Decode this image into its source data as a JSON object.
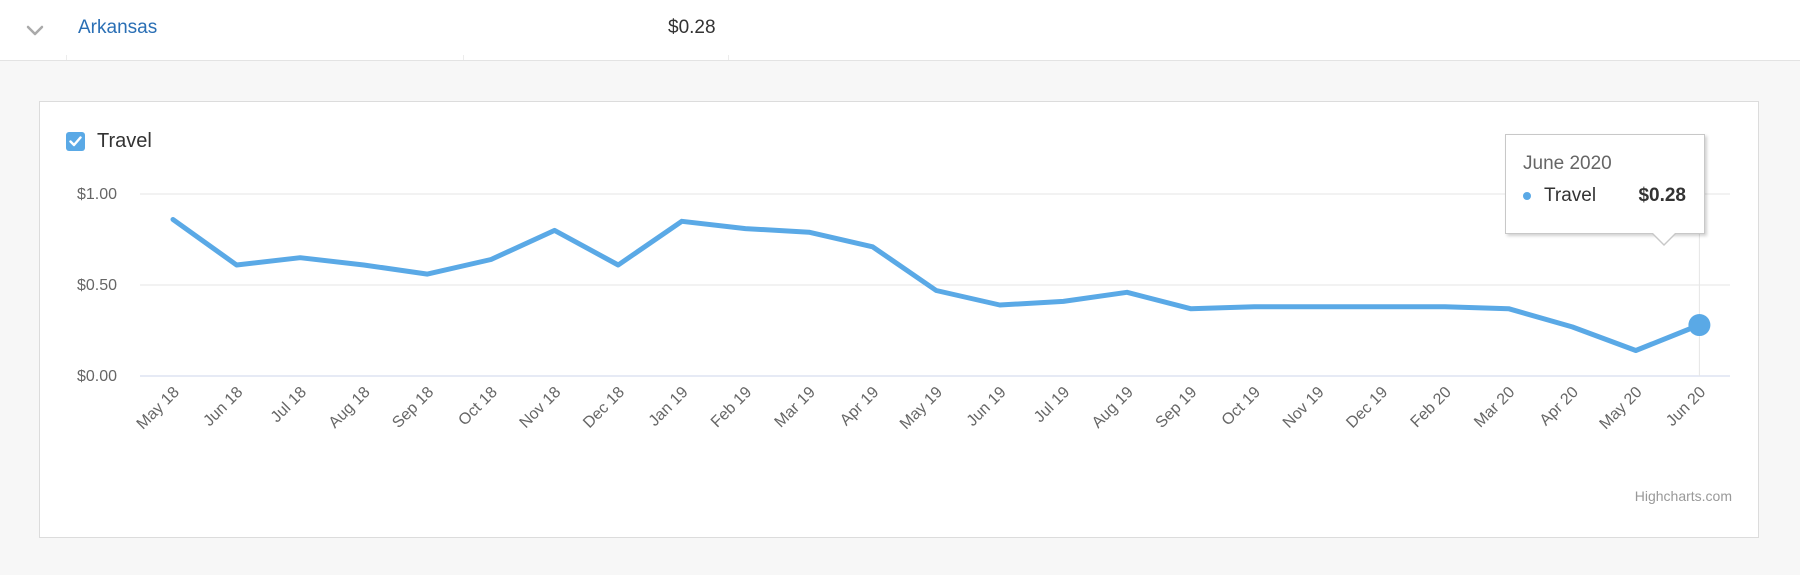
{
  "row": {
    "state": "Arkansas",
    "value": "$0.28"
  },
  "legend": {
    "series_label": "Travel",
    "checked": true
  },
  "tooltip": {
    "title": "June 2020",
    "series": "Travel",
    "value": "$0.28"
  },
  "credits": "Highcharts.com",
  "colors": {
    "series": "#5aa9e6",
    "link": "#2a6fb5"
  },
  "chart_data": {
    "type": "line",
    "categories": [
      "May 18",
      "Jun 18",
      "Jul 18",
      "Aug 18",
      "Sep 18",
      "Oct 18",
      "Nov 18",
      "Dec 18",
      "Jan 19",
      "Feb 19",
      "Mar 19",
      "Apr 19",
      "May 19",
      "Jun 19",
      "Jul 19",
      "Aug 19",
      "Sep 19",
      "Oct 19",
      "Nov 19",
      "Dec 19",
      "Feb 20",
      "Mar 20",
      "Apr 20",
      "May 20",
      "Jun 20"
    ],
    "series": [
      {
        "name": "Travel",
        "values": [
          0.86,
          0.61,
          0.65,
          0.61,
          0.56,
          0.64,
          0.8,
          0.61,
          0.85,
          0.81,
          0.79,
          0.71,
          0.47,
          0.39,
          0.41,
          0.46,
          0.37,
          0.38,
          0.38,
          0.38,
          0.38,
          0.37,
          0.27,
          0.14,
          0.28
        ]
      }
    ],
    "y_ticks": [
      "$0.00",
      "$0.50",
      "$1.00"
    ],
    "ylim": [
      0,
      1
    ],
    "highlighted_index": 24,
    "grid": true,
    "legend_position": "top-left"
  }
}
